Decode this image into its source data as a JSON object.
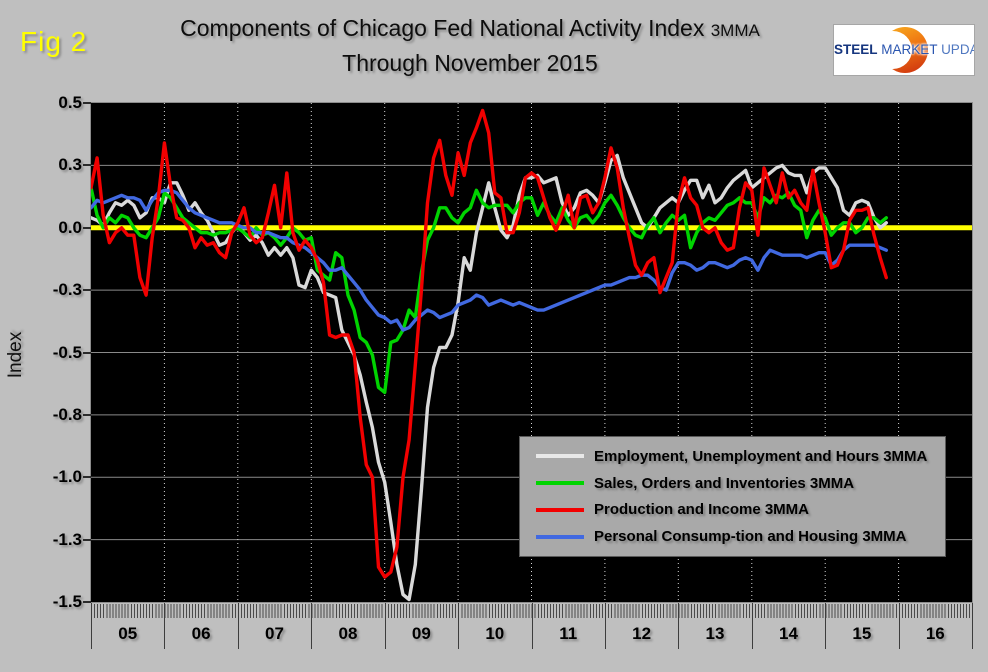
{
  "fig_label": "Fig 2",
  "title": {
    "line1": "Components of Chicago Fed National Activity Index",
    "mma": "3MMA",
    "line2": "Through November 2015"
  },
  "logo": {
    "steel": "STEEL",
    "market": "MARKET",
    "update": "UPDATE"
  },
  "y_axis_title": "Index",
  "colors": {
    "page_bg": "#bfbfbf",
    "plot_bg": "#000000",
    "grid_solid": "#8a8a8a",
    "grid_dotted": "#d6d6d6",
    "zero_line": "#ffff00",
    "legend_bg": "#a9a9a9",
    "fig_label": "#ffff00"
  },
  "chart_data": {
    "type": "line",
    "title": "Components of Chicago Fed National Activity Index 3MMA Through November 2015",
    "ylabel": "Index",
    "ylim": [
      -1.5,
      0.5
    ],
    "grid": true,
    "frequency": "monthly",
    "x_start": "2005-01",
    "x_end": "2015-11",
    "x_year_labels": [
      "05",
      "06",
      "07",
      "08",
      "09",
      "10",
      "11",
      "12",
      "13",
      "14",
      "15",
      "16"
    ],
    "y_ticks": [
      {
        "value": 0.5,
        "label": "0.5"
      },
      {
        "value": 0.25,
        "label": "0.3"
      },
      {
        "value": 0.0,
        "label": "0.0"
      },
      {
        "value": -0.25,
        "label": "-0.3"
      },
      {
        "value": -0.5,
        "label": "-0.5"
      },
      {
        "value": -0.75,
        "label": "-0.8"
      },
      {
        "value": -1.0,
        "label": "-1.0"
      },
      {
        "value": -1.25,
        "label": "-1.3"
      },
      {
        "value": -1.5,
        "label": "-1.5"
      }
    ],
    "zero_line_value": 0.0,
    "legend_position": "bottom-right",
    "series": [
      {
        "name": "Employment, Unemployment and Hours 3MMA",
        "color": "#d9d9d9",
        "values": [
          0.04,
          0.03,
          0.01,
          0.06,
          0.1,
          0.09,
          0.11,
          0.09,
          0.04,
          0.06,
          0.12,
          0.12,
          0.1,
          0.18,
          0.18,
          0.13,
          0.07,
          0.1,
          0.06,
          0.03,
          -0.02,
          -0.07,
          -0.06,
          -0.02,
          0.01,
          -0.02,
          -0.05,
          -0.03,
          -0.06,
          -0.11,
          -0.08,
          -0.11,
          -0.08,
          -0.12,
          -0.23,
          -0.24,
          -0.17,
          -0.2,
          -0.26,
          -0.27,
          -0.28,
          -0.41,
          -0.46,
          -0.51,
          -0.59,
          -0.7,
          -0.8,
          -0.94,
          -1.02,
          -1.18,
          -1.35,
          -1.47,
          -1.49,
          -1.35,
          -1.05,
          -0.72,
          -0.56,
          -0.48,
          -0.48,
          -0.43,
          -0.3,
          -0.12,
          -0.17,
          -0.02,
          0.08,
          0.18,
          0.08,
          -0.01,
          -0.04,
          0.01,
          0.13,
          0.2,
          0.2,
          0.21,
          0.18,
          0.19,
          0.2,
          0.1,
          0.05,
          0.08,
          0.14,
          0.15,
          0.13,
          0.1,
          0.18,
          0.27,
          0.29,
          0.2,
          0.14,
          0.08,
          0.02,
          0.0,
          0.04,
          0.08,
          0.1,
          0.12,
          0.1,
          0.15,
          0.19,
          0.19,
          0.12,
          0.17,
          0.1,
          0.12,
          0.16,
          0.19,
          0.21,
          0.23,
          0.16,
          0.18,
          0.2,
          0.22,
          0.24,
          0.25,
          0.22,
          0.21,
          0.21,
          0.14,
          0.22,
          0.24,
          0.24,
          0.2,
          0.16,
          0.07,
          0.05,
          0.1,
          0.11,
          0.1,
          0.04,
          0.0,
          0.02
        ]
      },
      {
        "name": "Sales, Orders and Inventories 3MMA",
        "color": "#00d400",
        "values": [
          0.16,
          0.05,
          0.0,
          0.04,
          0.02,
          0.05,
          0.04,
          0.0,
          -0.03,
          -0.04,
          0.0,
          0.04,
          0.14,
          0.12,
          0.08,
          0.04,
          0.02,
          0.0,
          -0.02,
          -0.02,
          -0.03,
          -0.02,
          -0.02,
          -0.01,
          0.0,
          -0.02,
          -0.04,
          0.0,
          -0.03,
          -0.02,
          -0.04,
          -0.07,
          -0.04,
          0.0,
          -0.02,
          -0.05,
          -0.04,
          -0.17,
          -0.19,
          -0.21,
          -0.1,
          -0.12,
          -0.27,
          -0.33,
          -0.44,
          -0.46,
          -0.51,
          -0.64,
          -0.66,
          -0.46,
          -0.45,
          -0.41,
          -0.33,
          -0.36,
          -0.18,
          -0.05,
          0.0,
          0.08,
          0.08,
          0.04,
          0.02,
          0.06,
          0.08,
          0.15,
          0.1,
          0.08,
          0.09,
          0.09,
          0.09,
          0.06,
          0.1,
          0.12,
          0.12,
          0.05,
          0.1,
          0.05,
          0.02,
          0.08,
          0.03,
          0.0,
          0.04,
          0.05,
          0.02,
          0.05,
          0.1,
          0.13,
          0.09,
          0.04,
          0.0,
          -0.03,
          -0.04,
          0.01,
          0.04,
          -0.02,
          0.02,
          0.05,
          0.03,
          0.05,
          -0.08,
          -0.02,
          0.02,
          0.04,
          0.03,
          0.06,
          0.09,
          0.1,
          0.12,
          0.1,
          0.1,
          0.04,
          0.12,
          0.1,
          0.13,
          0.12,
          0.14,
          0.09,
          0.07,
          -0.04,
          0.03,
          0.07,
          0.04,
          -0.03,
          0.0,
          0.02,
          0.02,
          -0.02,
          0.0,
          0.04,
          0.04,
          0.02,
          0.04
        ]
      },
      {
        "name": "Production and Income 3MMA",
        "color": "#f20000",
        "values": [
          0.16,
          0.28,
          0.05,
          -0.06,
          -0.02,
          0.0,
          -0.03,
          -0.03,
          -0.2,
          -0.27,
          -0.04,
          0.12,
          0.34,
          0.17,
          0.04,
          0.03,
          0.0,
          -0.08,
          -0.04,
          -0.07,
          -0.06,
          -0.1,
          -0.12,
          -0.02,
          0.02,
          0.08,
          -0.03,
          -0.06,
          -0.04,
          0.06,
          0.17,
          0.0,
          0.22,
          -0.02,
          -0.09,
          -0.05,
          -0.08,
          -0.13,
          -0.22,
          -0.43,
          -0.44,
          -0.43,
          -0.43,
          -0.5,
          -0.76,
          -0.95,
          -1.0,
          -1.36,
          -1.4,
          -1.38,
          -1.28,
          -1.0,
          -0.85,
          -0.55,
          -0.25,
          0.1,
          0.28,
          0.35,
          0.21,
          0.13,
          0.3,
          0.21,
          0.34,
          0.4,
          0.47,
          0.38,
          0.14,
          0.12,
          -0.02,
          -0.02,
          0.06,
          0.2,
          0.22,
          0.2,
          0.12,
          0.04,
          -0.01,
          0.05,
          0.13,
          0.0,
          0.12,
          0.13,
          0.06,
          0.1,
          0.2,
          0.32,
          0.24,
          0.08,
          -0.04,
          -0.15,
          -0.19,
          -0.14,
          -0.12,
          -0.26,
          -0.2,
          -0.14,
          0.1,
          0.2,
          0.12,
          0.09,
          0.0,
          -0.02,
          0.0,
          -0.06,
          -0.09,
          -0.08,
          0.08,
          0.18,
          0.15,
          -0.03,
          0.24,
          0.17,
          0.1,
          0.22,
          0.12,
          0.15,
          0.1,
          0.07,
          0.23,
          0.1,
          -0.02,
          -0.16,
          -0.15,
          -0.09,
          0.03,
          0.07,
          0.07,
          0.08,
          -0.03,
          -0.12,
          -0.2
        ]
      },
      {
        "name": "Personal Consump-tion and Housing 3MMA",
        "color": "#4169e1",
        "values": [
          0.08,
          0.11,
          0.1,
          0.11,
          0.12,
          0.13,
          0.12,
          0.12,
          0.11,
          0.07,
          0.11,
          0.14,
          0.15,
          0.15,
          0.14,
          0.11,
          0.08,
          0.06,
          0.05,
          0.04,
          0.03,
          0.02,
          0.02,
          0.02,
          0.01,
          0.0,
          0.0,
          -0.02,
          -0.02,
          -0.02,
          -0.03,
          -0.04,
          -0.04,
          -0.06,
          -0.07,
          -0.08,
          -0.1,
          -0.12,
          -0.14,
          -0.17,
          -0.17,
          -0.16,
          -0.19,
          -0.22,
          -0.25,
          -0.29,
          -0.32,
          -0.35,
          -0.36,
          -0.38,
          -0.37,
          -0.41,
          -0.4,
          -0.37,
          -0.35,
          -0.33,
          -0.34,
          -0.36,
          -0.35,
          -0.34,
          -0.31,
          -0.3,
          -0.29,
          -0.27,
          -0.28,
          -0.31,
          -0.3,
          -0.29,
          -0.3,
          -0.31,
          -0.3,
          -0.31,
          -0.32,
          -0.33,
          -0.33,
          -0.32,
          -0.31,
          -0.3,
          -0.29,
          -0.28,
          -0.27,
          -0.26,
          -0.25,
          -0.24,
          -0.23,
          -0.23,
          -0.22,
          -0.21,
          -0.2,
          -0.2,
          -0.19,
          -0.19,
          -0.21,
          -0.24,
          -0.25,
          -0.18,
          -0.14,
          -0.14,
          -0.15,
          -0.17,
          -0.16,
          -0.14,
          -0.14,
          -0.15,
          -0.16,
          -0.15,
          -0.13,
          -0.12,
          -0.13,
          -0.17,
          -0.12,
          -0.09,
          -0.1,
          -0.11,
          -0.11,
          -0.11,
          -0.11,
          -0.12,
          -0.11,
          -0.1,
          -0.1,
          -0.15,
          -0.13,
          -0.09,
          -0.07,
          -0.07,
          -0.07,
          -0.07,
          -0.07,
          -0.08,
          -0.09
        ]
      }
    ]
  }
}
